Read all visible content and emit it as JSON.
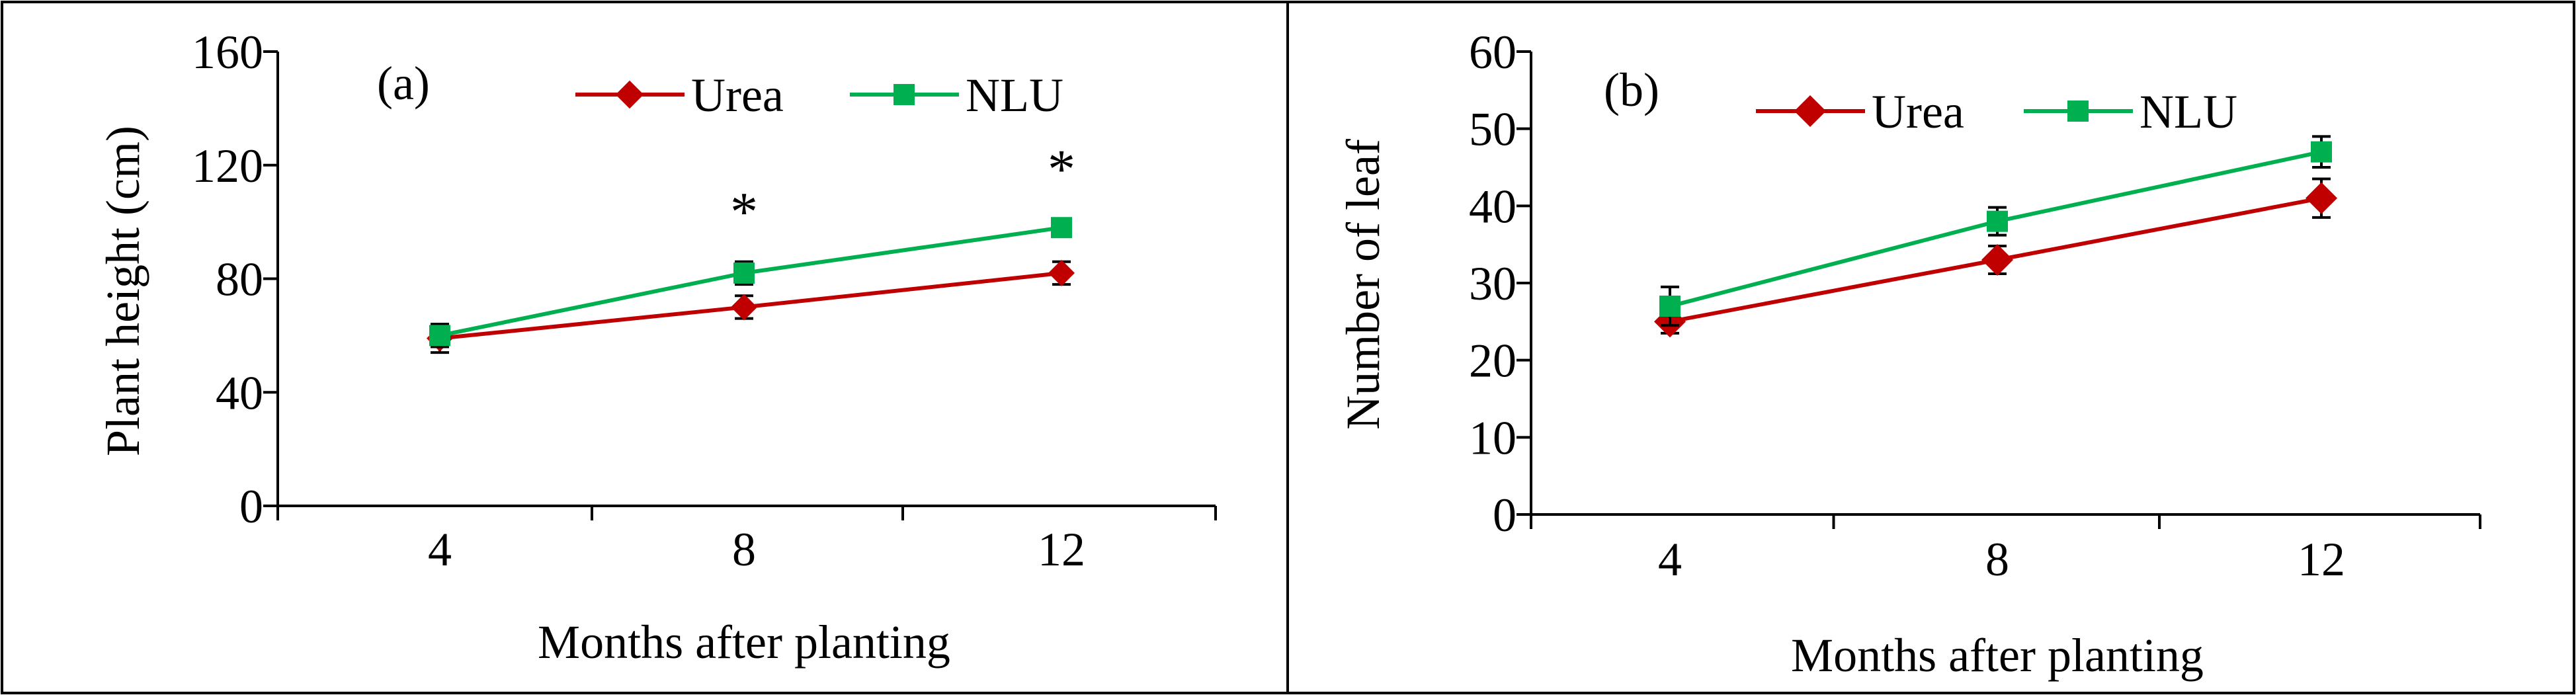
{
  "chart_data": [
    {
      "type": "line",
      "panel_label": "(a)",
      "title": "",
      "xlabel": "Months after planting",
      "ylabel": "Plant height (cm)",
      "categories": [
        "4",
        "8",
        "12"
      ],
      "ylim": [
        0,
        160
      ],
      "yticks": [
        "0",
        "40",
        "80",
        "120",
        "160"
      ],
      "grid": false,
      "legend_position": "top-center",
      "series": [
        {
          "name": "Urea",
          "color": "#C00000",
          "marker": "diamond",
          "values": [
            59,
            70,
            82
          ],
          "errors": [
            5,
            4,
            4
          ]
        },
        {
          "name": "NLU",
          "color": "#00B050",
          "marker": "square",
          "values": [
            60,
            82,
            98
          ],
          "errors": [
            4,
            4,
            3
          ]
        }
      ],
      "annotations": [
        {
          "text": "*",
          "category": "8",
          "y": 106
        },
        {
          "text": "*",
          "category": "12",
          "y": 121
        }
      ]
    },
    {
      "type": "line",
      "panel_label": "(b)",
      "title": "",
      "xlabel": "Months after planting",
      "ylabel": "Number of leaf",
      "categories": [
        "4",
        "8",
        "12"
      ],
      "ylim": [
        0,
        60
      ],
      "yticks": [
        "0",
        "10",
        "20",
        "30",
        "40",
        "50",
        "60"
      ],
      "grid": false,
      "legend_position": "top-center",
      "series": [
        {
          "name": "Urea",
          "color": "#C00000",
          "marker": "diamond",
          "values": [
            25,
            33,
            41
          ],
          "errors": [
            1.5,
            1.8,
            2.5
          ]
        },
        {
          "name": "NLU",
          "color": "#00B050",
          "marker": "square",
          "values": [
            27,
            38,
            47
          ],
          "errors": [
            2.5,
            1.8,
            2.0
          ]
        }
      ],
      "annotations": []
    }
  ]
}
